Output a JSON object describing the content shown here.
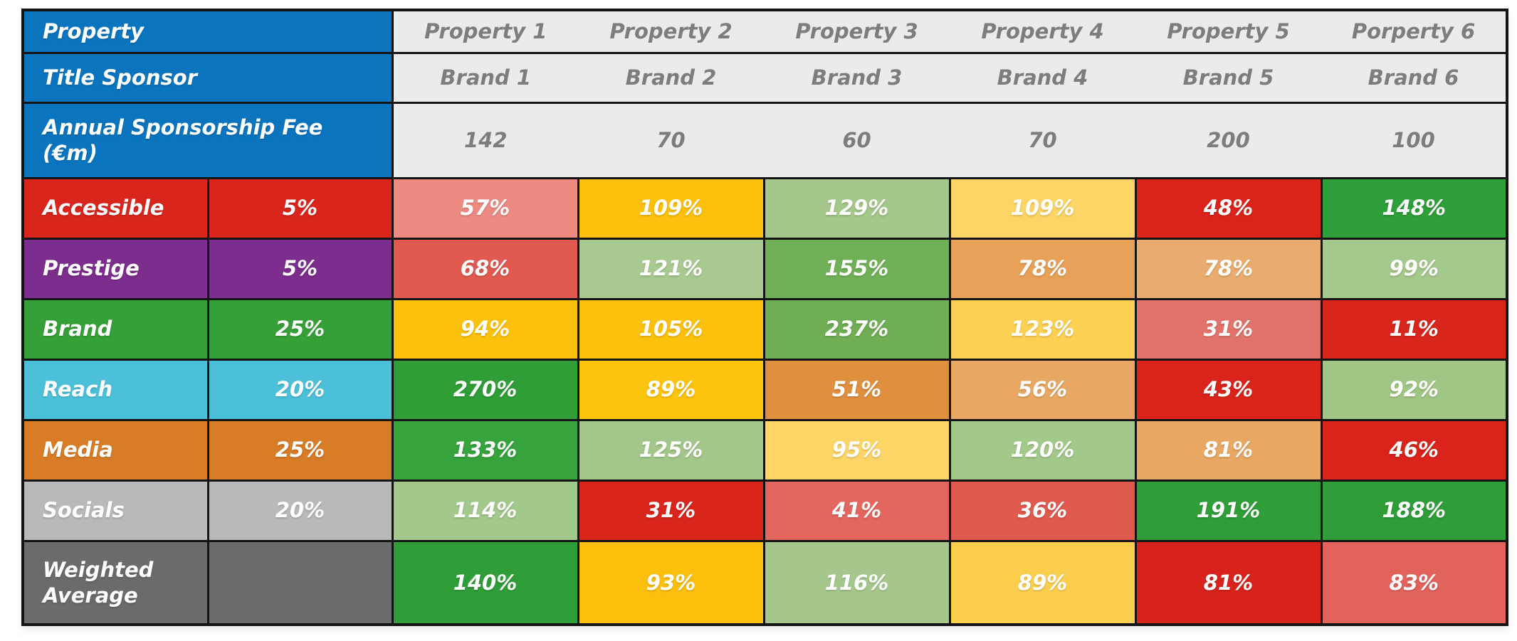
{
  "colors": {
    "header_blue": "#0b74bf",
    "header_gray_bg": "#ebebeb",
    "header_gray_text": "#7d7d7d",
    "grid_border": "#141414",
    "cell_text": "#ffffff"
  },
  "table": {
    "header_rows": [
      {
        "label_lines": [
          "Property"
        ],
        "values": [
          "Property 1",
          "Property 2",
          "Property 3",
          "Property 4",
          "Property 5",
          "Porperty 6"
        ]
      },
      {
        "label_lines": [
          "Title Sponsor"
        ],
        "values": [
          "Brand 1",
          "Brand 2",
          "Brand 3",
          "Brand 4",
          "Brand 5",
          "Brand 6"
        ]
      },
      {
        "label_lines": [
          "Annual Sponsorship Fee",
          "(€m)"
        ],
        "values": [
          "142",
          "70",
          "60",
          "70",
          "200",
          "100"
        ]
      }
    ],
    "criteria_rows": [
      {
        "label_lines": [
          "Accessible"
        ],
        "weight": "5%",
        "color": "#da251c",
        "cells": [
          {
            "value": "57%",
            "color": "#ed8a82"
          },
          {
            "value": "109%",
            "color": "#fcc10d"
          },
          {
            "value": "129%",
            "color": "#a4c78b"
          },
          {
            "value": "109%",
            "color": "#fcd566"
          },
          {
            "value": "48%",
            "color": "#da241b"
          },
          {
            "value": "148%",
            "color": "#2e9f39"
          }
        ]
      },
      {
        "label_lines": [
          "Prestige"
        ],
        "weight": "5%",
        "color": "#7c2d8d",
        "cells": [
          {
            "value": "68%",
            "color": "#e05a50"
          },
          {
            "value": "121%",
            "color": "#a8ca90"
          },
          {
            "value": "155%",
            "color": "#70b158"
          },
          {
            "value": "78%",
            "color": "#e8a158"
          },
          {
            "value": "78%",
            "color": "#eaac6e"
          },
          {
            "value": "99%",
            "color": "#a5c88c"
          }
        ]
      },
      {
        "label_lines": [
          "Brand"
        ],
        "weight": "25%",
        "color": "#36a038",
        "cells": [
          {
            "value": "94%",
            "color": "#fcc10d"
          },
          {
            "value": "105%",
            "color": "#fcc10d"
          },
          {
            "value": "237%",
            "color": "#6fae55"
          },
          {
            "value": "123%",
            "color": "#fcd053"
          },
          {
            "value": "31%",
            "color": "#e2736b"
          },
          {
            "value": "11%",
            "color": "#da251c"
          }
        ]
      },
      {
        "label_lines": [
          "Reach"
        ],
        "weight": "20%",
        "color": "#4cc0d9",
        "cells": [
          {
            "value": "270%",
            "color": "#2f9e37"
          },
          {
            "value": "89%",
            "color": "#fcc40e"
          },
          {
            "value": "51%",
            "color": "#e08f3f"
          },
          {
            "value": "56%",
            "color": "#e8a763"
          },
          {
            "value": "43%",
            "color": "#da241b"
          },
          {
            "value": "92%",
            "color": "#a0c685"
          }
        ]
      },
      {
        "label_lines": [
          "Media"
        ],
        "weight": "25%",
        "color": "#d87c27",
        "cells": [
          {
            "value": "133%",
            "color": "#36a33c"
          },
          {
            "value": "125%",
            "color": "#a3c78a"
          },
          {
            "value": "95%",
            "color": "#fdd567"
          },
          {
            "value": "120%",
            "color": "#a3c98a"
          },
          {
            "value": "81%",
            "color": "#e8a763"
          },
          {
            "value": "46%",
            "color": "#da241b"
          }
        ]
      },
      {
        "label_lines": [
          "Socials"
        ],
        "weight": "20%",
        "color": "#b9b9b9",
        "cells": [
          {
            "value": "114%",
            "color": "#a3c88b"
          },
          {
            "value": "31%",
            "color": "#da251c"
          },
          {
            "value": "41%",
            "color": "#e3675f"
          },
          {
            "value": "36%",
            "color": "#e05a4d"
          },
          {
            "value": "191%",
            "color": "#2f9e38"
          },
          {
            "value": "188%",
            "color": "#2f9e38"
          }
        ]
      },
      {
        "label_lines": [
          "Weighted",
          "Average"
        ],
        "weight": "",
        "color": "#6b6b6b",
        "cells": [
          {
            "value": "140%",
            "color": "#2f9e38"
          },
          {
            "value": "93%",
            "color": "#fcbf0c"
          },
          {
            "value": "116%",
            "color": "#a5c78c"
          },
          {
            "value": "89%",
            "color": "#fcce4e"
          },
          {
            "value": "81%",
            "color": "#d8231c"
          },
          {
            "value": "83%",
            "color": "#e2625c"
          }
        ]
      }
    ]
  },
  "chart_data": {
    "type": "heatmap",
    "columns": [
      "Property 1",
      "Property 2",
      "Property 3",
      "Property 4",
      "Property 5",
      "Porperty 6"
    ],
    "title_sponsors": [
      "Brand 1",
      "Brand 2",
      "Brand 3",
      "Brand 4",
      "Brand 5",
      "Brand 6"
    ],
    "annual_sponsorship_fee_eur_m": [
      142,
      70,
      60,
      70,
      200,
      100
    ],
    "criteria": [
      {
        "name": "Accessible",
        "weight_pct": 5,
        "scores_pct": [
          57,
          109,
          129,
          109,
          48,
          148
        ]
      },
      {
        "name": "Prestige",
        "weight_pct": 5,
        "scores_pct": [
          68,
          121,
          155,
          78,
          78,
          99
        ]
      },
      {
        "name": "Brand",
        "weight_pct": 25,
        "scores_pct": [
          94,
          105,
          237,
          123,
          31,
          11
        ]
      },
      {
        "name": "Reach",
        "weight_pct": 20,
        "scores_pct": [
          270,
          89,
          51,
          56,
          43,
          92
        ]
      },
      {
        "name": "Media",
        "weight_pct": 25,
        "scores_pct": [
          133,
          125,
          95,
          120,
          81,
          46
        ]
      },
      {
        "name": "Socials",
        "weight_pct": 20,
        "scores_pct": [
          114,
          31,
          41,
          36,
          191,
          188
        ]
      }
    ],
    "weighted_average_pct": [
      140,
      93,
      116,
      89,
      81,
      83
    ],
    "legend_position": "none",
    "grid": true
  }
}
